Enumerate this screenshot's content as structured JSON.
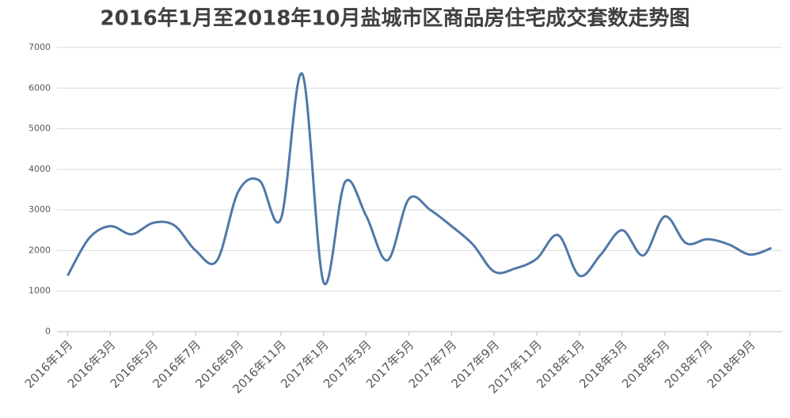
{
  "chart_data": {
    "type": "line",
    "title": "2016年1月至2018年10月盐城市区商品房住宅成交套数走势图",
    "categories": [
      "2016年1月",
      null,
      "2016年3月",
      null,
      "2016年5月",
      null,
      "2016年7月",
      null,
      "2016年9月",
      null,
      "2016年11月",
      null,
      "2017年1月",
      null,
      "2017年3月",
      null,
      "2017年5月",
      null,
      "2017年7月",
      null,
      "2017年9月",
      null,
      "2017年11月",
      null,
      "2018年1月",
      null,
      "2018年3月",
      null,
      "2018年5月",
      null,
      "2018年7月",
      null,
      "2018年9月",
      null
    ],
    "values": [
      1380,
      2300,
      2600,
      2400,
      2680,
      2620,
      2000,
      1750,
      3450,
      3720,
      2780,
      6350,
      1220,
      3680,
      2850,
      1760,
      3270,
      3000,
      2600,
      2150,
      1480,
      1560,
      1800,
      2380,
      1380,
      1900,
      2500,
      1880,
      2840,
      2180,
      2280,
      2150,
      1900,
      2060
    ],
    "color": "#4f78a8",
    "ylim": [
      0,
      7000
    ],
    "yticks": [
      0,
      1000,
      2000,
      3000,
      4000,
      5000,
      6000,
      7000
    ],
    "grid": true
  }
}
